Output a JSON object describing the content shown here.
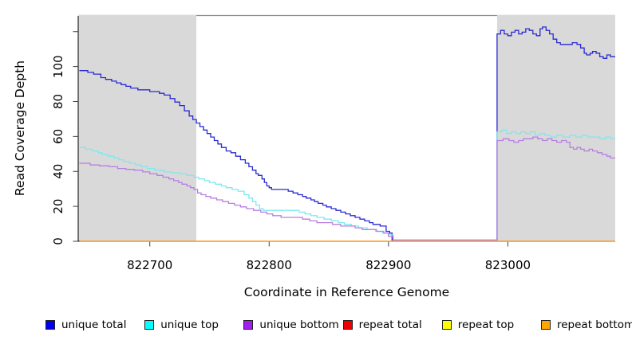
{
  "figure": {
    "background": "#ffffff",
    "region_color": "#d9d9d9",
    "frame_color": "#8c8c8c",
    "axis_color": "#000000",
    "tick_color": "#404040"
  },
  "chart_data": {
    "type": "line",
    "style": "step",
    "title": "",
    "xlabel": "Coordinate in Reference Genome",
    "ylabel": "Read Coverage Depth",
    "xlim": [
      822640,
      823090
    ],
    "ylim": [
      0,
      129
    ],
    "x_ticks": [
      822700,
      822800,
      822900,
      823000
    ],
    "x_tick_labels": [
      "822700",
      "822800",
      "822900",
      "823000"
    ],
    "y_ticks": [
      0,
      20,
      40,
      60,
      80,
      100,
      120
    ],
    "y_tick_labels": [
      "0",
      "20",
      "40",
      "60",
      "80",
      "100",
      ""
    ],
    "grid": false,
    "legend_position": "bottom-horizontal",
    "shaded_regions": [
      {
        "name": "repeat-region-left",
        "x0": 822640,
        "x1": 822739
      },
      {
        "name": "repeat-region-right",
        "x0": 822991,
        "x1": 823090
      }
    ],
    "series": [
      {
        "name": "unique total",
        "group": "unique",
        "color": "#2a2ad0",
        "legend_color": "#0000ee",
        "points": [
          [
            822641,
            97
          ],
          [
            822648,
            96
          ],
          [
            822653,
            95
          ],
          [
            822659,
            93
          ],
          [
            822663,
            92
          ],
          [
            822668,
            91
          ],
          [
            822672,
            90
          ],
          [
            822676,
            89
          ],
          [
            822680,
            88
          ],
          [
            822684,
            87
          ],
          [
            822690,
            86
          ],
          [
            822700,
            85
          ],
          [
            822708,
            84
          ],
          [
            822712,
            83
          ],
          [
            822717,
            81
          ],
          [
            822721,
            79
          ],
          [
            822725,
            77
          ],
          [
            822729,
            74
          ],
          [
            822733,
            71
          ],
          [
            822736,
            69
          ],
          [
            822739,
            67
          ],
          [
            822742,
            65
          ],
          [
            822745,
            63
          ],
          [
            822748,
            61
          ],
          [
            822751,
            59
          ],
          [
            822754,
            57
          ],
          [
            822757,
            55
          ],
          [
            822760,
            53
          ],
          [
            822764,
            51
          ],
          [
            822768,
            50
          ],
          [
            822772,
            48
          ],
          [
            822776,
            46
          ],
          [
            822780,
            44
          ],
          [
            822783,
            42
          ],
          [
            822786,
            40
          ],
          [
            822789,
            38
          ],
          [
            822791,
            37
          ],
          [
            822794,
            35
          ],
          [
            822796,
            33
          ],
          [
            822798,
            31
          ],
          [
            822800,
            30
          ],
          [
            822802,
            29
          ],
          [
            822812,
            29
          ],
          [
            822816,
            28
          ],
          [
            822820,
            27
          ],
          [
            822824,
            26
          ],
          [
            822828,
            25
          ],
          [
            822831,
            24
          ],
          [
            822835,
            23
          ],
          [
            822838,
            22
          ],
          [
            822841,
            21
          ],
          [
            822845,
            20
          ],
          [
            822848,
            19
          ],
          [
            822852,
            18
          ],
          [
            822856,
            17
          ],
          [
            822860,
            16
          ],
          [
            822864,
            15
          ],
          [
            822868,
            14
          ],
          [
            822872,
            13
          ],
          [
            822876,
            12
          ],
          [
            822880,
            11
          ],
          [
            822884,
            10
          ],
          [
            822887,
            9
          ],
          [
            822893,
            8
          ],
          [
            822898,
            5
          ],
          [
            822901,
            4
          ],
          [
            822903,
            0
          ],
          [
            822990,
            0
          ],
          [
            822991,
            118
          ],
          [
            822994,
            120
          ],
          [
            822997,
            118
          ],
          [
            823000,
            117
          ],
          [
            823003,
            119
          ],
          [
            823006,
            120
          ],
          [
            823009,
            118
          ],
          [
            823012,
            119
          ],
          [
            823015,
            121
          ],
          [
            823018,
            120
          ],
          [
            823021,
            118
          ],
          [
            823024,
            117
          ],
          [
            823027,
            121
          ],
          [
            823029,
            122
          ],
          [
            823032,
            120
          ],
          [
            823035,
            118
          ],
          [
            823038,
            115
          ],
          [
            823041,
            113
          ],
          [
            823044,
            112
          ],
          [
            823050,
            112
          ],
          [
            823054,
            113
          ],
          [
            823058,
            112
          ],
          [
            823061,
            110
          ],
          [
            823064,
            107
          ],
          [
            823066,
            106
          ],
          [
            823069,
            107
          ],
          [
            823071,
            108
          ],
          [
            823074,
            107
          ],
          [
            823077,
            105
          ],
          [
            823080,
            104
          ],
          [
            823083,
            106
          ],
          [
            823086,
            105
          ],
          [
            823090,
            105
          ]
        ]
      },
      {
        "name": "unique top",
        "group": "unique",
        "color": "#7fe8ef",
        "legend_color": "#00ffff",
        "points": [
          [
            822641,
            53
          ],
          [
            822646,
            52
          ],
          [
            822652,
            51
          ],
          [
            822657,
            50
          ],
          [
            822660,
            49
          ],
          [
            822665,
            48
          ],
          [
            822670,
            47
          ],
          [
            822674,
            46
          ],
          [
            822678,
            45
          ],
          [
            822683,
            44
          ],
          [
            822688,
            43
          ],
          [
            822693,
            42
          ],
          [
            822698,
            41
          ],
          [
            822704,
            40
          ],
          [
            822712,
            39
          ],
          [
            822718,
            38.5
          ],
          [
            822725,
            38
          ],
          [
            822731,
            37
          ],
          [
            822737,
            36
          ],
          [
            822741,
            35
          ],
          [
            822746,
            34
          ],
          [
            822750,
            33
          ],
          [
            822755,
            32
          ],
          [
            822760,
            31
          ],
          [
            822764,
            30
          ],
          [
            822769,
            29
          ],
          [
            822774,
            28
          ],
          [
            822779,
            26
          ],
          [
            822783,
            24
          ],
          [
            822786,
            22
          ],
          [
            822789,
            20
          ],
          [
            822792,
            18
          ],
          [
            822795,
            17
          ],
          [
            822820,
            17
          ],
          [
            822825,
            16
          ],
          [
            822830,
            15
          ],
          [
            822835,
            14
          ],
          [
            822840,
            13
          ],
          [
            822846,
            12
          ],
          [
            822852,
            11
          ],
          [
            822858,
            10
          ],
          [
            822863,
            9
          ],
          [
            822869,
            8
          ],
          [
            822875,
            7
          ],
          [
            822882,
            6
          ],
          [
            822889,
            5
          ],
          [
            822895,
            4
          ],
          [
            822900,
            3
          ],
          [
            822904,
            0
          ],
          [
            822990,
            0
          ],
          [
            822991,
            62
          ],
          [
            822995,
            63
          ],
          [
            822999,
            61
          ],
          [
            823003,
            62
          ],
          [
            823007,
            61
          ],
          [
            823011,
            62
          ],
          [
            823015,
            61
          ],
          [
            823019,
            62
          ],
          [
            823023,
            60
          ],
          [
            823027,
            61
          ],
          [
            823031,
            60
          ],
          [
            823036,
            59
          ],
          [
            823041,
            60
          ],
          [
            823046,
            59
          ],
          [
            823052,
            60
          ],
          [
            823057,
            59
          ],
          [
            823062,
            60
          ],
          [
            823067,
            59
          ],
          [
            823072,
            59
          ],
          [
            823077,
            58
          ],
          [
            823082,
            59
          ],
          [
            823086,
            58
          ],
          [
            823090,
            58
          ]
        ]
      },
      {
        "name": "unique bottom",
        "group": "unique",
        "color": "#b87fe3",
        "legend_color": "#a020f0",
        "points": [
          [
            822641,
            44
          ],
          [
            822650,
            43
          ],
          [
            822658,
            42.5
          ],
          [
            822666,
            42
          ],
          [
            822673,
            41
          ],
          [
            822680,
            40.5
          ],
          [
            822687,
            40
          ],
          [
            822694,
            39
          ],
          [
            822700,
            38
          ],
          [
            822706,
            37
          ],
          [
            822711,
            36
          ],
          [
            822716,
            35
          ],
          [
            822720,
            34
          ],
          [
            822724,
            33
          ],
          [
            822727,
            32
          ],
          [
            822731,
            31
          ],
          [
            822734,
            30
          ],
          [
            822737,
            29
          ],
          [
            822740,
            27
          ],
          [
            822743,
            26
          ],
          [
            822747,
            25
          ],
          [
            822751,
            24
          ],
          [
            822756,
            23
          ],
          [
            822761,
            22
          ],
          [
            822766,
            21
          ],
          [
            822771,
            20
          ],
          [
            822776,
            19
          ],
          [
            822781,
            18
          ],
          [
            822787,
            17
          ],
          [
            822793,
            16
          ],
          [
            822798,
            15
          ],
          [
            822803,
            14
          ],
          [
            822810,
            13
          ],
          [
            822824,
            13
          ],
          [
            822828,
            12
          ],
          [
            822834,
            11
          ],
          [
            822840,
            10
          ],
          [
            822847,
            10
          ],
          [
            822853,
            9
          ],
          [
            822860,
            8
          ],
          [
            822872,
            7
          ],
          [
            822878,
            6
          ],
          [
            822890,
            5
          ],
          [
            822896,
            4
          ],
          [
            822900,
            2
          ],
          [
            822904,
            0
          ],
          [
            822990,
            0
          ],
          [
            822991,
            57
          ],
          [
            822996,
            58
          ],
          [
            823001,
            57
          ],
          [
            823005,
            56
          ],
          [
            823009,
            57
          ],
          [
            823013,
            58
          ],
          [
            823017,
            58
          ],
          [
            823021,
            59
          ],
          [
            823025,
            58
          ],
          [
            823029,
            57
          ],
          [
            823033,
            58
          ],
          [
            823037,
            57
          ],
          [
            823041,
            56
          ],
          [
            823045,
            57
          ],
          [
            823049,
            56
          ],
          [
            823052,
            53
          ],
          [
            823055,
            52
          ],
          [
            823058,
            53
          ],
          [
            823061,
            52
          ],
          [
            823064,
            51
          ],
          [
            823068,
            52
          ],
          [
            823071,
            51
          ],
          [
            823075,
            50
          ],
          [
            823079,
            49
          ],
          [
            823083,
            48
          ],
          [
            823086,
            47
          ],
          [
            823090,
            47
          ]
        ]
      },
      {
        "name": "repeat total",
        "group": "repeat",
        "color": "#dd0000",
        "legend_color": "#ee0000",
        "points": [
          [
            822641,
            0
          ],
          [
            823090,
            0
          ]
        ]
      },
      {
        "name": "repeat top",
        "group": "repeat",
        "color": "#ffff00",
        "legend_color": "#ffff00",
        "points": [
          [
            822641,
            0
          ],
          [
            823090,
            0
          ]
        ]
      },
      {
        "name": "repeat bottom",
        "group": "repeat",
        "color": "#ff9d26",
        "legend_color": "#ffa500",
        "points": [
          [
            822641,
            0
          ],
          [
            823090,
            0
          ]
        ]
      }
    ]
  },
  "legend": {
    "items": [
      {
        "label": "unique total",
        "color": "#0000ee"
      },
      {
        "label": "unique top",
        "color": "#00ffff"
      },
      {
        "label": "unique bottom",
        "color": "#a020f0"
      },
      {
        "label": "repeat total",
        "color": "#ee0000"
      },
      {
        "label": "repeat top",
        "color": "#ffff00"
      },
      {
        "label": "repeat bottom",
        "color": "#ffa500"
      }
    ]
  }
}
